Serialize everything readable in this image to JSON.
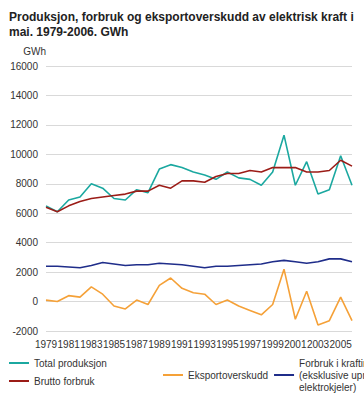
{
  "chart_data": {
    "type": "line",
    "title": "Produksjon, forbruk og eksportoverskudd av elektrisk kraft i mai. 1979-2006. GWh",
    "y_label": "GWh",
    "categories": [
      "1979",
      null,
      "1981",
      null,
      "1983",
      null,
      "1985",
      null,
      "1987",
      null,
      "1989",
      null,
      "1991",
      null,
      "1993",
      null,
      "1995",
      null,
      "1997",
      null,
      "1999",
      null,
      "2001",
      null,
      "2003",
      null,
      "2005",
      null
    ],
    "series": [
      {
        "name": "Total produksjon",
        "color": "#1ba8a0",
        "values": [
          6500,
          6100,
          6900,
          7100,
          8000,
          7700,
          7000,
          6900,
          7600,
          7400,
          9000,
          9300,
          9100,
          8800,
          8600,
          8300,
          8800,
          8400,
          8300,
          7900,
          8800,
          11300,
          7900,
          9500,
          7300,
          7600,
          9900,
          7900
        ]
      },
      {
        "name": "Brutto forbruk",
        "color": "#9b1c17",
        "values": [
          6400,
          6100,
          6500,
          6800,
          7000,
          7100,
          7200,
          7300,
          7500,
          7500,
          7900,
          7700,
          8200,
          8200,
          8100,
          8500,
          8700,
          8700,
          8900,
          8800,
          9100,
          9100,
          9100,
          8800,
          8800,
          8900,
          9600,
          9200
        ]
      },
      {
        "name": "Eksportoverskudd",
        "color": "#f5a138",
        "values": [
          100,
          0,
          400,
          300,
          1000,
          500,
          -300,
          -500,
          100,
          -200,
          1100,
          1600,
          900,
          600,
          500,
          -200,
          100,
          -300,
          -600,
          -900,
          -200,
          2200,
          -1200,
          700,
          -1600,
          -1300,
          300,
          -1300
        ]
      },
      {
        "name": "Forbruk i kraftintensiv industri\n(eksklusive uprioritert kraft til\nelektrokjeler)",
        "color": "#1f2d8a",
        "values": [
          2400,
          2400,
          2350,
          2300,
          2450,
          2650,
          2550,
          2450,
          2500,
          2500,
          2600,
          2550,
          2500,
          2400,
          2300,
          2400,
          2400,
          2450,
          2500,
          2550,
          2700,
          2800,
          2700,
          2600,
          2700,
          2900,
          2900,
          2700
        ]
      }
    ],
    "ylim": [
      -2000,
      16000
    ],
    "yticks": [
      -2000,
      0,
      2000,
      4000,
      6000,
      8000,
      10000,
      12000,
      14000,
      16000
    ],
    "grid": true,
    "legend": "bottom"
  }
}
